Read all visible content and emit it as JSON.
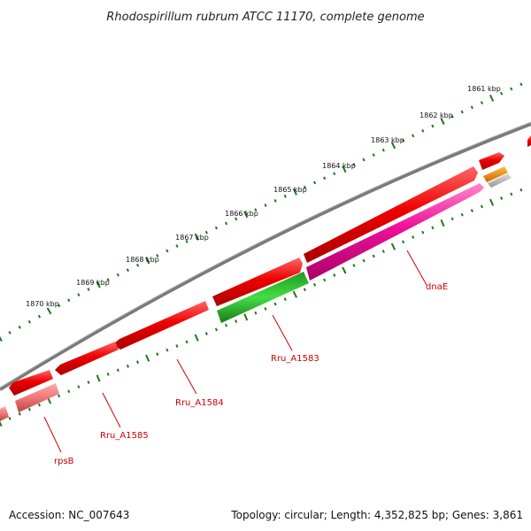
{
  "title": "Rhodospirillum rubrum ATCC 11170, complete genome",
  "accession_text": "Accession: NC_007643",
  "summary_text": "Topology: circular; Length: 4,352,825 bp; Genes: 3,861",
  "kbp_labels": [
    "1861 kbp",
    "1862 kbp",
    "1863 kbp",
    "1864 kbp",
    "1865 kbp",
    "1866 kbp",
    "1867 kbp",
    "1868 kbp",
    "1869 kbp",
    "1870 kbp"
  ],
  "gene_labels": {
    "dnaE": "dnaE",
    "rru_a1583": "Rru_A1583",
    "rru_a1584": "Rru_A1584",
    "rru_a1585": "Rru_A1585",
    "rpsb": "rpsB"
  },
  "colors": {
    "backbone": "#7a7a7a",
    "tick": "#1a7a1a",
    "gene_red": "#ee0000",
    "gene_magenta": "#ee1199",
    "gene_green": "#22aa22",
    "gene_orange": "#ee8800",
    "gene_gray": "#bbbbbb",
    "gene_pink": "#ee7777",
    "label": "#cc0000"
  }
}
